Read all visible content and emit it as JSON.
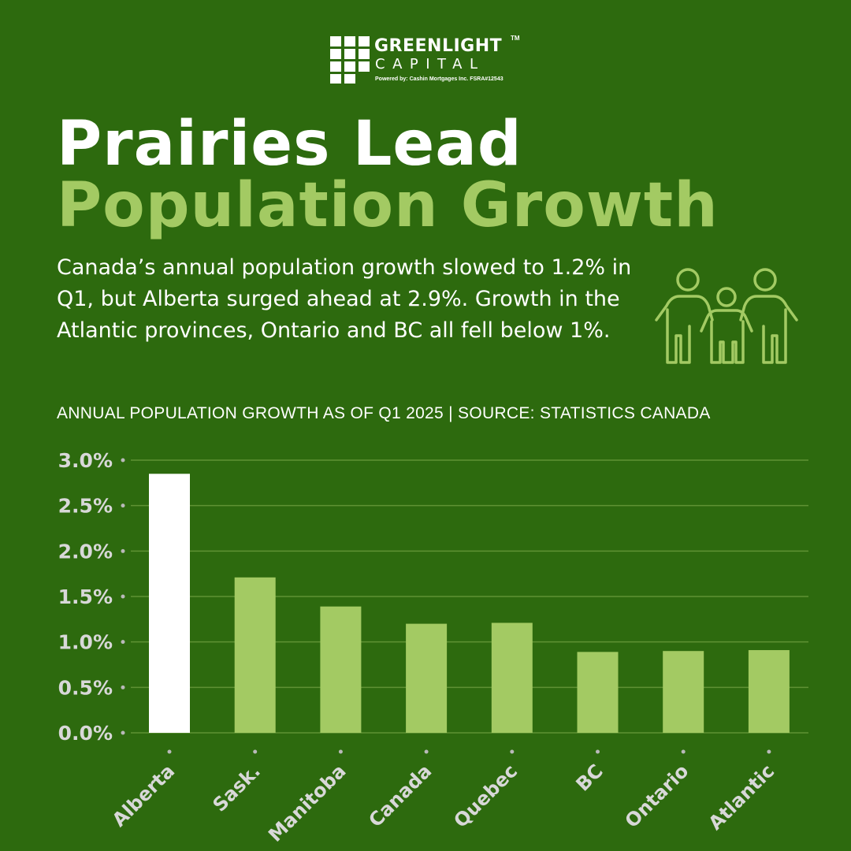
{
  "logo": {
    "name": "GREENLIGHT",
    "trademark": "TM",
    "sub": "CAPITAL",
    "powered_by": "Powered by:  Cashin Mortgages Inc.  FSRA#12543"
  },
  "headline": {
    "line1": "Prairies Lead",
    "line2": "Population Growth"
  },
  "description": "Canada’s annual population growth slowed to 1.2% in Q1, but Alberta surged ahead at 2.9%. Growth in the Atlantic provinces, Ontario and BC all fell below 1%.",
  "icons": {
    "illustration": "family-icon"
  },
  "colors": {
    "background": "#2d6a0e",
    "accent": "#a3ca63",
    "highlight_bar": "#ffffff",
    "tick_text": "#d8d8d8"
  },
  "chart_data": {
    "type": "bar",
    "title": "ANNUAL POPULATION GROWTH AS OF Q1 2025 | SOURCE: STATISTICS CANADA",
    "categories": [
      "Alberta",
      "Sask.",
      "Manitoba",
      "Canada",
      "Quebec",
      "BC",
      "Ontario",
      "Atlantic"
    ],
    "values": [
      2.85,
      1.71,
      1.39,
      1.2,
      1.21,
      0.89,
      0.9,
      0.91
    ],
    "highlight": "Alberta",
    "y_ticks": [
      "0.0%",
      "0.5%",
      "1.0%",
      "1.5%",
      "2.0%",
      "2.5%",
      "3.0%"
    ],
    "ylim": [
      0,
      3.0
    ],
    "grid": true,
    "legend": "none"
  }
}
